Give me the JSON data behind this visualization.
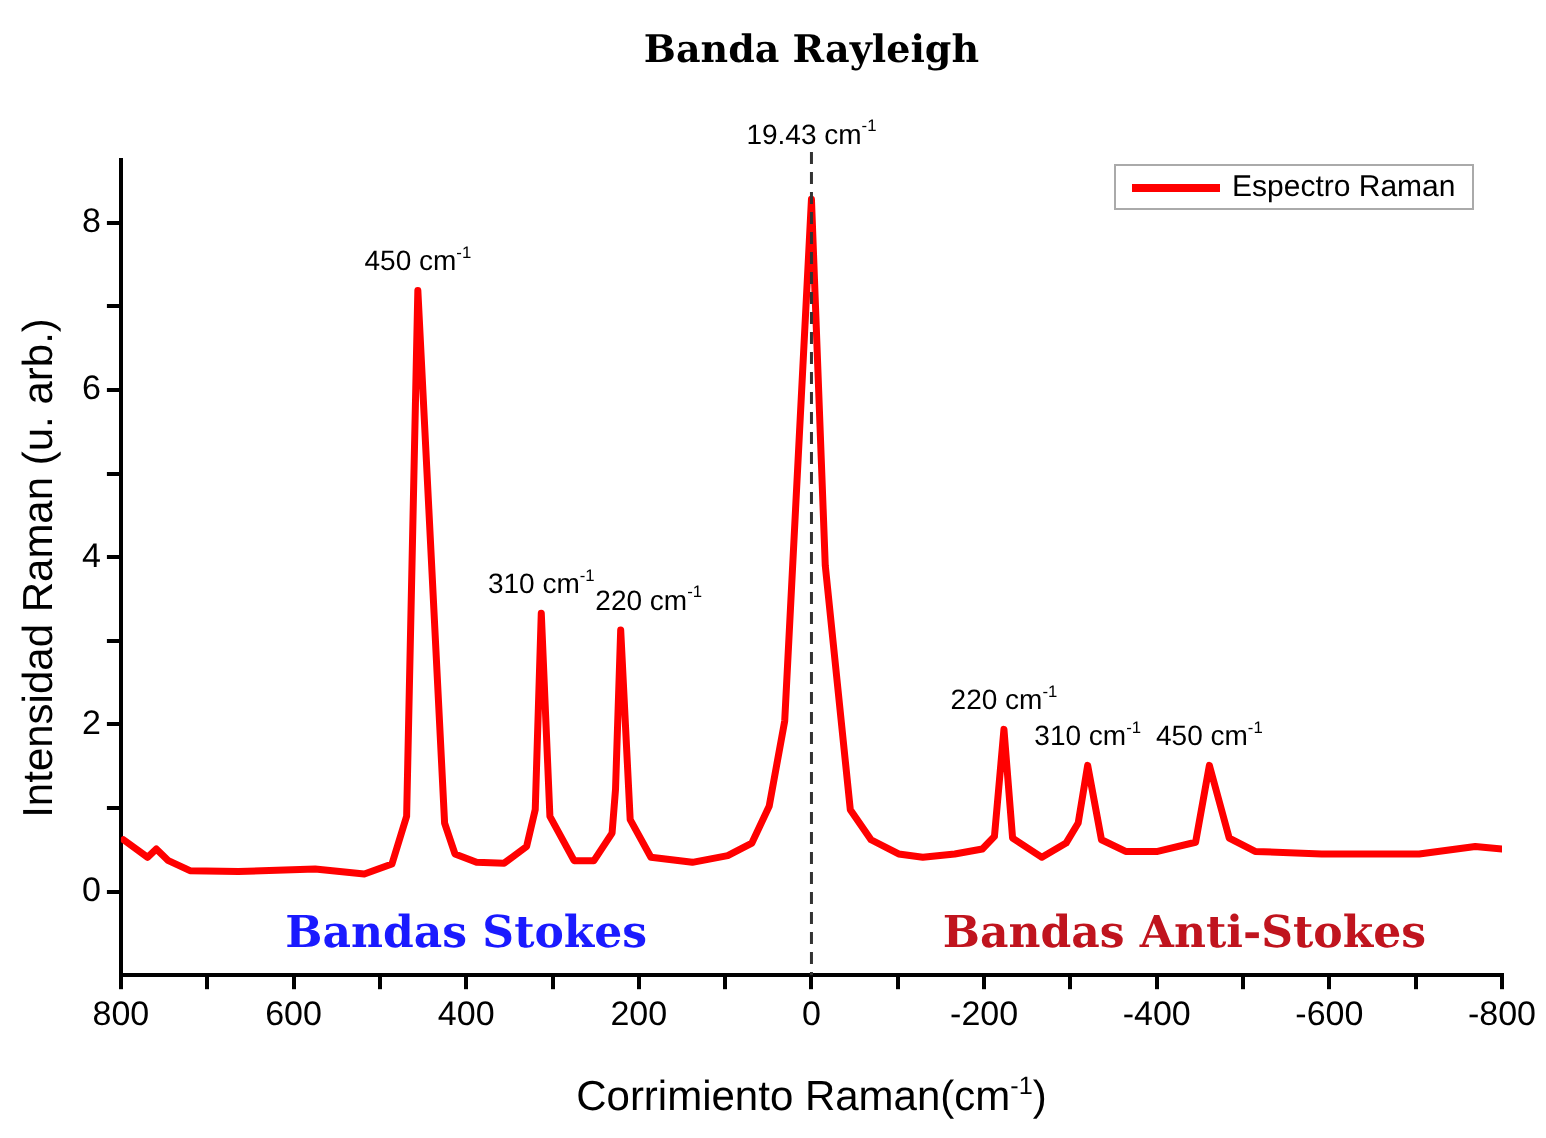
{
  "chart_data": {
    "type": "line",
    "title": "Banda Rayleigh",
    "xlabel": "Corrimiento Raman(cm$^{-1}$)",
    "ylabel": "Intensidad Raman (u. arb.)",
    "series": [
      {
        "name": "Espectro Raman",
        "color": "#ff0000",
        "x": [
          797,
          769,
          759,
          745,
          720,
          664,
          575,
          518,
          486,
          469,
          456,
          425,
          413,
          388,
          356,
          330,
          320,
          313,
          303,
          275,
          252,
          231,
          227,
          221,
          210,
          186,
          138,
          97,
          69,
          49,
          31,
          0,
          -16,
          -45,
          -69,
          -101,
          -129,
          -166,
          -198,
          -212,
          -223,
          -233,
          -267,
          -295,
          -309,
          -320,
          -336,
          -364,
          -401,
          -445,
          -461,
          -484,
          -514,
          -591,
          -704,
          -769,
          -800
        ],
        "values": [
          0.62,
          0.41,
          0.51,
          0.37,
          0.25,
          0.24,
          0.27,
          0.21,
          0.33,
          0.9,
          7.19,
          0.82,
          0.45,
          0.35,
          0.34,
          0.54,
          0.98,
          3.33,
          0.9,
          0.37,
          0.37,
          0.7,
          1.22,
          3.13,
          0.86,
          0.41,
          0.35,
          0.43,
          0.58,
          1.02,
          2.04,
          8.28,
          3.9,
          0.98,
          0.62,
          0.45,
          0.41,
          0.45,
          0.51,
          0.66,
          1.94,
          0.64,
          0.41,
          0.58,
          0.82,
          1.51,
          0.62,
          0.48,
          0.48,
          0.59,
          1.51,
          0.64,
          0.48,
          0.45,
          0.45,
          0.54,
          0.51
        ]
      }
    ],
    "xlim": [
      800,
      -800
    ],
    "xticks": [
      800,
      {
        "value": 700,
        "label": null
      },
      600,
      {
        "value": 500,
        "label": null
      },
      400,
      {
        "value": 300,
        "label": null
      },
      200,
      {
        "value": 100,
        "label": null
      },
      0,
      {
        "value": -100,
        "label": null
      },
      {
        "value": -200,
        "label": "-200"
      },
      {
        "value": -300,
        "label": null
      },
      {
        "value": -400,
        "label": "-400"
      },
      {
        "value": -500,
        "label": null
      },
      {
        "value": -600,
        "label": "-600"
      },
      {
        "value": -700,
        "label": null
      },
      {
        "value": -800,
        "label": "-800"
      }
    ],
    "ylim": [
      -1,
      8.75
    ],
    "yticks": [
      0,
      {
        "value": 1,
        "label": null
      },
      2,
      {
        "value": 3,
        "label": null
      },
      4,
      {
        "value": 5,
        "label": null
      },
      6,
      {
        "value": 7,
        "label": null
      },
      8
    ],
    "ref_lines": [
      {
        "axis": "x",
        "value": 0,
        "label": "19.43 cm$^{-1}$",
        "color": "#333333",
        "line_style": "dashed"
      }
    ],
    "annotations": [
      "Bandas Stokes",
      "Bandas Anti-Stokes",
      {
        "text": "450 cm$^{-1}$",
        "x": 456,
        "y": 7.19
      },
      {
        "text": "310 cm$^{-1}$",
        "x": 313,
        "y": 3.33
      },
      {
        "text": "220 cm$^{-1}$",
        "x": 221,
        "y": 3.13
      },
      {
        "text": "220 cm$^{-1}$",
        "x": -223,
        "y": 1.94
      },
      {
        "text": "310 cm$^{-1}$",
        "x": -320,
        "y": 1.51
      },
      {
        "text": "450 cm$^{-1}$",
        "x": -461,
        "y": 1.51
      }
    ],
    "legend": "top right",
    "marker": "none",
    "line_style": "solid",
    "grid": false
  }
}
